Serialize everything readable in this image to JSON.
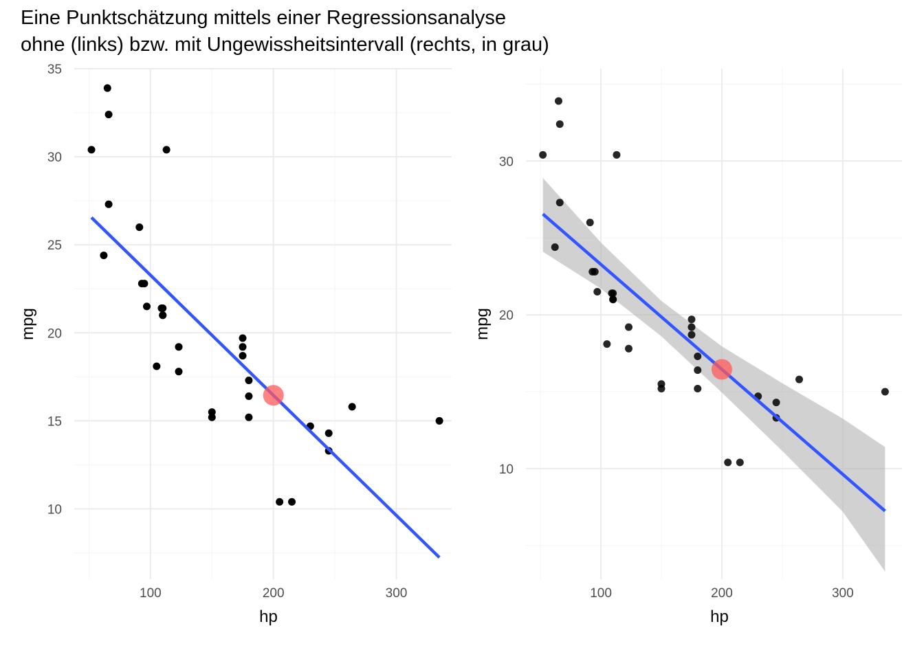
{
  "title": {
    "line1": "Eine Punktschätzung mittels einer Regressionsanalyse",
    "line2": "ohne (links) bzw. mit Ungewissheitsintervall (rechts, in grau)"
  },
  "colors": {
    "points": "#000000",
    "regression_line": "#3355ff",
    "highlight_point": "#ff5a5a",
    "confidence_band": "#b3b3b3",
    "grid_major": "#ebebeb",
    "grid_minor": "#f5f5f5"
  },
  "chart_data": [
    {
      "type": "scatter",
      "name": "left",
      "xlabel": "hp",
      "ylabel": "mpg",
      "xlim": [
        38,
        345
      ],
      "ylim": [
        6,
        35
      ],
      "x_ticks": [
        100,
        200,
        300
      ],
      "y_ticks": [
        10,
        15,
        20,
        25,
        30,
        35
      ],
      "grid": true,
      "confidence_band": false,
      "points": [
        {
          "x": 110,
          "y": 21.0
        },
        {
          "x": 110,
          "y": 21.0
        },
        {
          "x": 93,
          "y": 22.8
        },
        {
          "x": 110,
          "y": 21.4
        },
        {
          "x": 175,
          "y": 18.7
        },
        {
          "x": 105,
          "y": 18.1
        },
        {
          "x": 245,
          "y": 14.3
        },
        {
          "x": 62,
          "y": 24.4
        },
        {
          "x": 95,
          "y": 22.8
        },
        {
          "x": 123,
          "y": 19.2
        },
        {
          "x": 123,
          "y": 17.8
        },
        {
          "x": 180,
          "y": 16.4
        },
        {
          "x": 180,
          "y": 17.3
        },
        {
          "x": 180,
          "y": 15.2
        },
        {
          "x": 205,
          "y": 10.4
        },
        {
          "x": 215,
          "y": 10.4
        },
        {
          "x": 230,
          "y": 14.7
        },
        {
          "x": 66,
          "y": 32.4
        },
        {
          "x": 52,
          "y": 30.4
        },
        {
          "x": 65,
          "y": 33.9
        },
        {
          "x": 97,
          "y": 21.5
        },
        {
          "x": 150,
          "y": 15.5
        },
        {
          "x": 150,
          "y": 15.2
        },
        {
          "x": 245,
          "y": 13.3
        },
        {
          "x": 175,
          "y": 19.2
        },
        {
          "x": 66,
          "y": 27.3
        },
        {
          "x": 91,
          "y": 26.0
        },
        {
          "x": 113,
          "y": 30.4
        },
        {
          "x": 264,
          "y": 15.8
        },
        {
          "x": 175,
          "y": 19.7
        },
        {
          "x": 335,
          "y": 15.0
        },
        {
          "x": 109,
          "y": 21.4
        }
      ],
      "regression": {
        "intercept": 30.0989,
        "slope": -0.06823,
        "x_range": [
          52,
          335
        ]
      },
      "highlight": {
        "x": 200,
        "y": 16.45
      }
    },
    {
      "type": "scatter",
      "name": "right",
      "xlabel": "hp",
      "ylabel": "mpg",
      "xlim": [
        38,
        349
      ],
      "ylim": [
        2.8,
        36
      ],
      "x_ticks": [
        100,
        200,
        300
      ],
      "y_ticks": [
        10,
        20,
        30
      ],
      "grid": true,
      "confidence_band": true,
      "band": {
        "x": [
          52,
          100,
          150,
          200,
          250,
          300,
          335
        ],
        "lower": [
          24.1,
          21.7,
          18.6,
          14.95,
          11.15,
          7.2,
          3.3
        ],
        "upper": [
          28.9,
          24.7,
          20.9,
          17.95,
          15.55,
          13.25,
          11.4
        ]
      },
      "points": [
        {
          "x": 110,
          "y": 21.0
        },
        {
          "x": 110,
          "y": 21.0
        },
        {
          "x": 93,
          "y": 22.8
        },
        {
          "x": 110,
          "y": 21.4
        },
        {
          "x": 175,
          "y": 18.7
        },
        {
          "x": 105,
          "y": 18.1
        },
        {
          "x": 245,
          "y": 14.3
        },
        {
          "x": 62,
          "y": 24.4
        },
        {
          "x": 95,
          "y": 22.8
        },
        {
          "x": 123,
          "y": 19.2
        },
        {
          "x": 123,
          "y": 17.8
        },
        {
          "x": 180,
          "y": 16.4
        },
        {
          "x": 180,
          "y": 17.3
        },
        {
          "x": 180,
          "y": 15.2
        },
        {
          "x": 205,
          "y": 10.4
        },
        {
          "x": 215,
          "y": 10.4
        },
        {
          "x": 230,
          "y": 14.7
        },
        {
          "x": 66,
          "y": 32.4
        },
        {
          "x": 52,
          "y": 30.4
        },
        {
          "x": 65,
          "y": 33.9
        },
        {
          "x": 97,
          "y": 21.5
        },
        {
          "x": 150,
          "y": 15.5
        },
        {
          "x": 150,
          "y": 15.2
        },
        {
          "x": 245,
          "y": 13.3
        },
        {
          "x": 175,
          "y": 19.2
        },
        {
          "x": 66,
          "y": 27.3
        },
        {
          "x": 91,
          "y": 26.0
        },
        {
          "x": 113,
          "y": 30.4
        },
        {
          "x": 264,
          "y": 15.8
        },
        {
          "x": 175,
          "y": 19.7
        },
        {
          "x": 335,
          "y": 15.0
        },
        {
          "x": 109,
          "y": 21.4
        }
      ],
      "regression": {
        "intercept": 30.0989,
        "slope": -0.06823,
        "x_range": [
          52,
          335
        ]
      },
      "highlight": {
        "x": 200,
        "y": 16.45
      }
    }
  ]
}
